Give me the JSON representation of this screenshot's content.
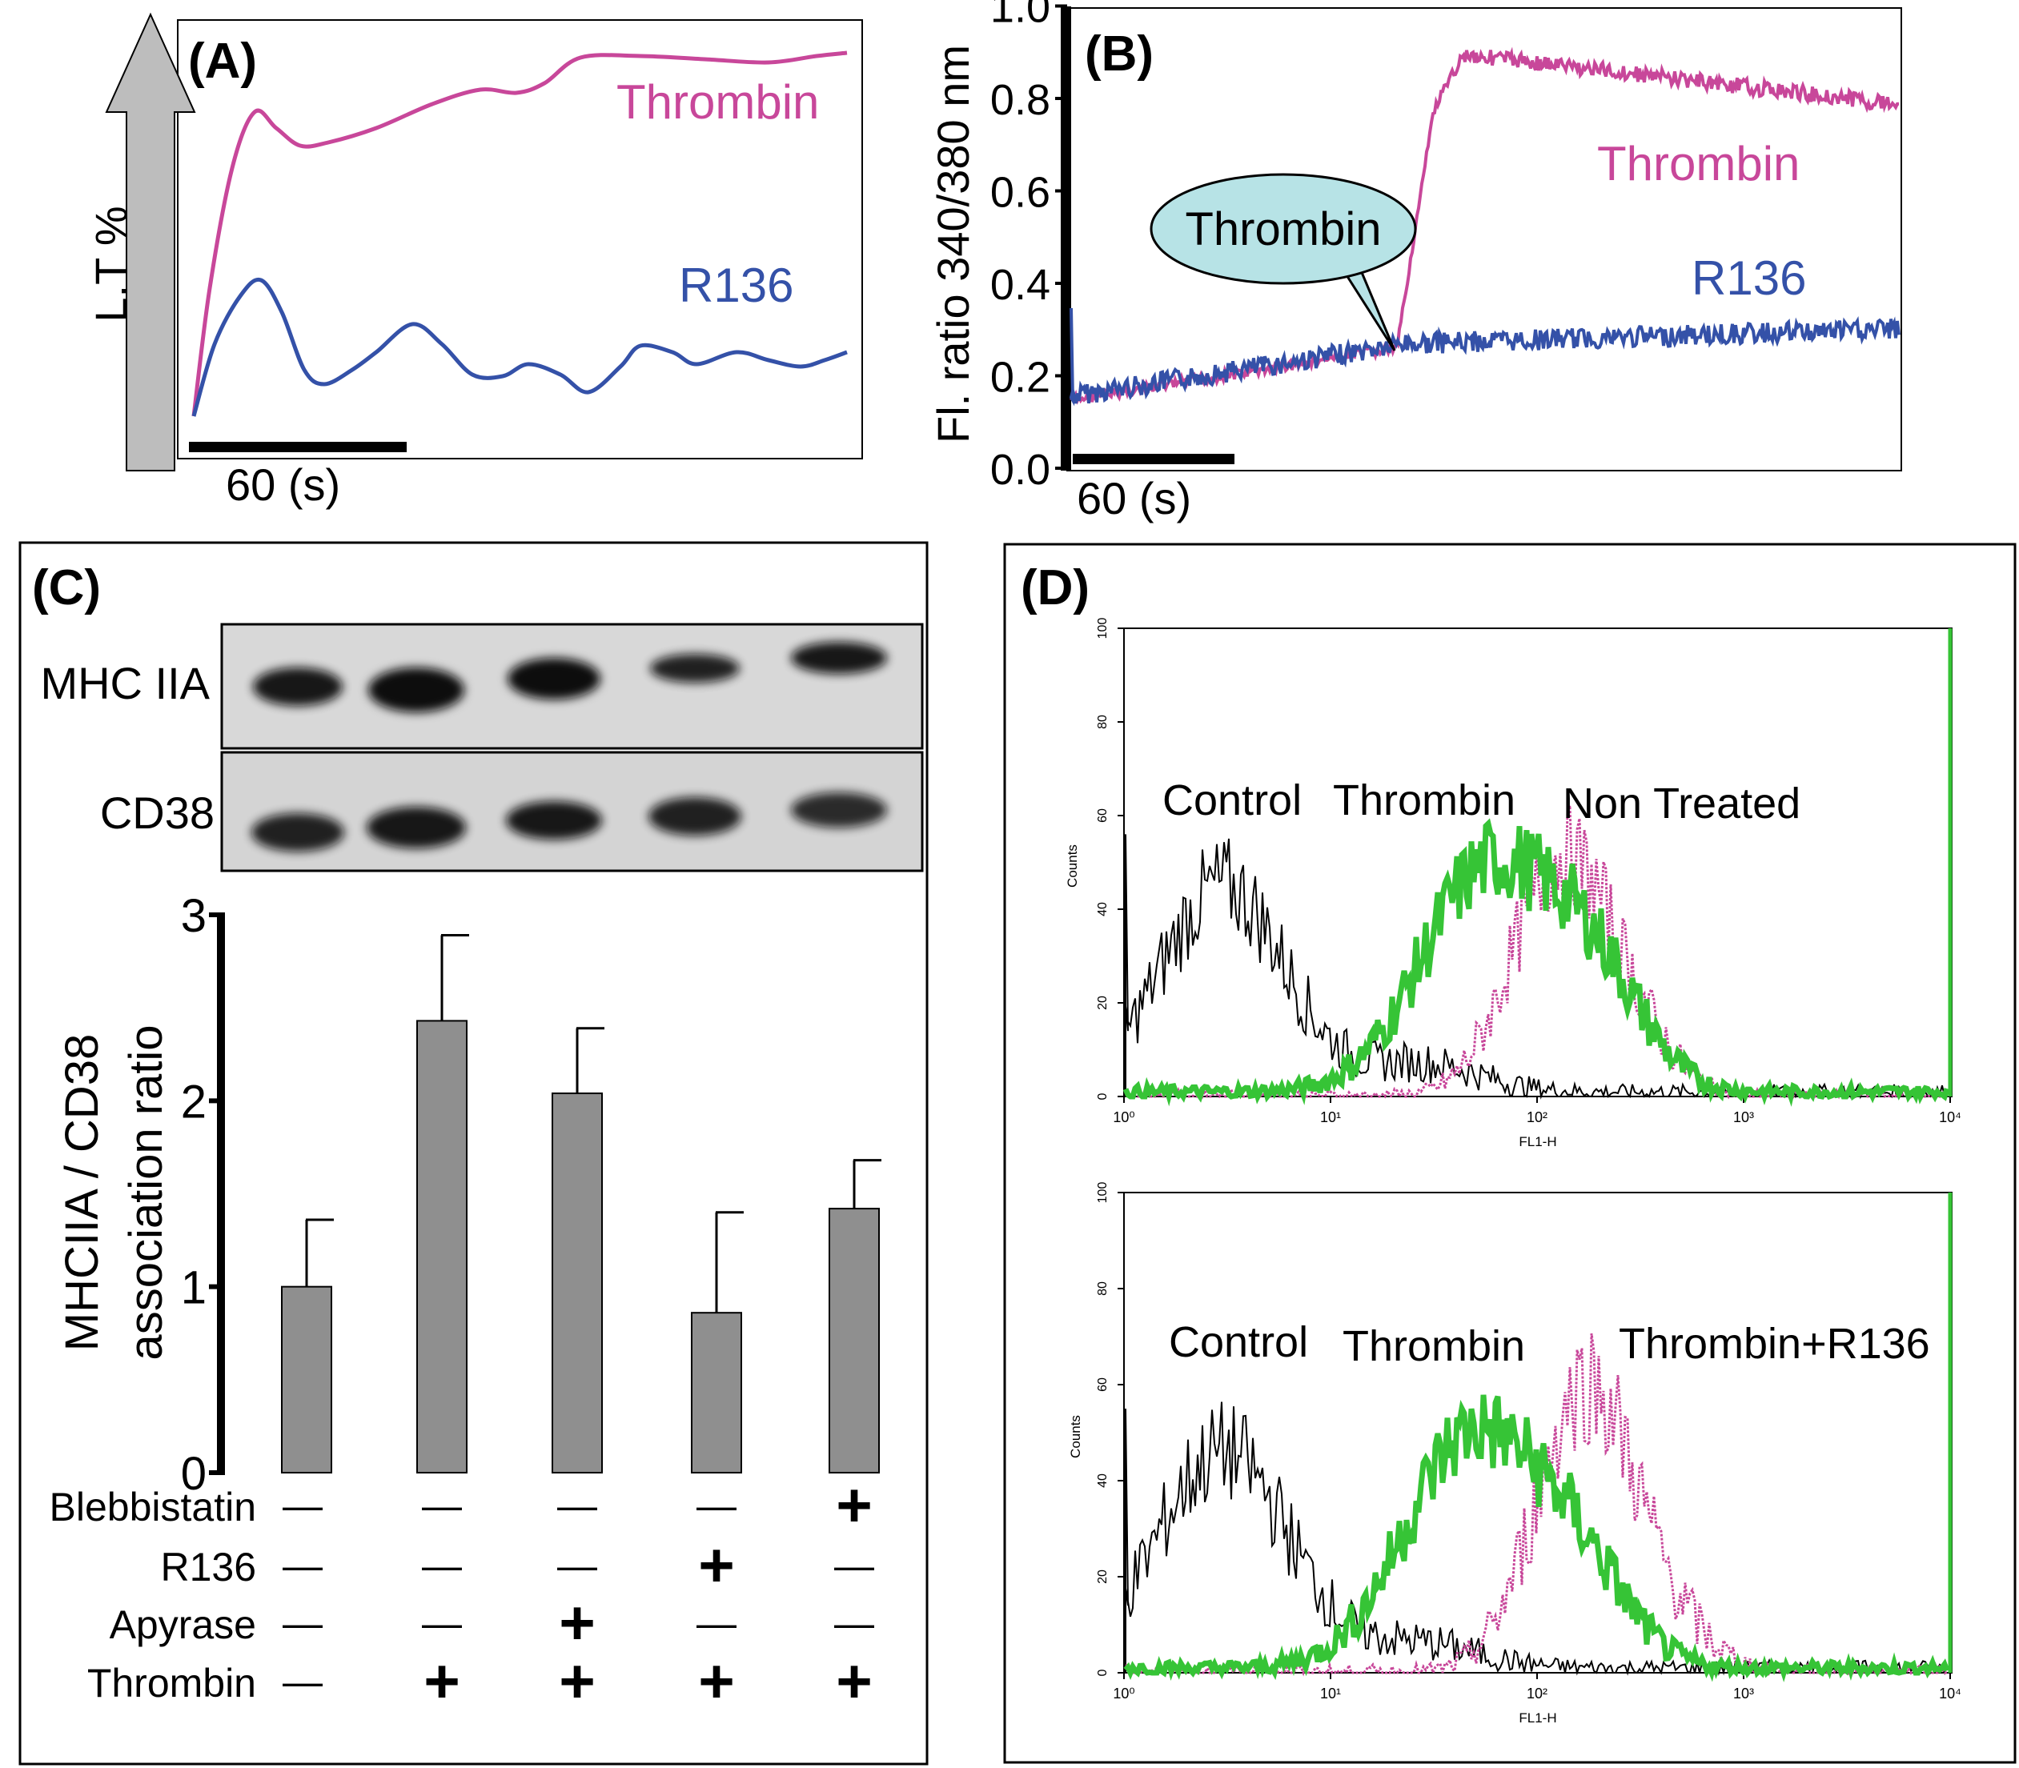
{
  "colors": {
    "thrombin": "#c8479a",
    "r136": "#3451a8",
    "green": "#36c436",
    "bar": "#8f8f8f",
    "callout": "#b7e3e6"
  },
  "panelA": {
    "label": "(A)",
    "ylabel": "L.T %",
    "scale_label": "60 (s)",
    "series": [
      {
        "name": "Thrombin"
      },
      {
        "name": "R136"
      }
    ]
  },
  "panelB": {
    "label": "(B)",
    "ylabel": "Fl. ratio 340/380 nm",
    "yticks": [
      "0.0",
      "0.2",
      "0.4",
      "0.6",
      "0.8",
      "1.0"
    ],
    "scale_label": "60 (s)",
    "callout": "Thrombin",
    "series": [
      {
        "name": "Thrombin"
      },
      {
        "name": "R136"
      }
    ]
  },
  "panelC": {
    "label": "(C)",
    "blot_labels": [
      "MHC IIA",
      "CD38"
    ],
    "chart_data": {
      "type": "bar",
      "ylabel_line1": "MHCIIA / CD38",
      "ylabel_line2": "association ratio",
      "ylim": [
        0,
        3
      ],
      "yticks": [
        "0",
        "1",
        "2",
        "3"
      ],
      "values": [
        1.0,
        2.43,
        2.04,
        0.86,
        1.42
      ],
      "errors": [
        0.36,
        0.46,
        0.35,
        0.54,
        0.26
      ],
      "conditions": [
        {
          "name": "Blebbistatin",
          "marks": [
            "—",
            "—",
            "—",
            "—",
            "+"
          ]
        },
        {
          "name": "R136",
          "marks": [
            "—",
            "—",
            "—",
            "+",
            "—"
          ]
        },
        {
          "name": "Apyrase",
          "marks": [
            "—",
            "—",
            "+",
            "—",
            "—"
          ]
        },
        {
          "name": "Thrombin",
          "marks": [
            "—",
            "+",
            "+",
            "+",
            "+"
          ]
        }
      ]
    }
  },
  "panelD": {
    "label": "(D)",
    "xlabel": "FL1-H",
    "ylabel": "Counts",
    "yticks": [
      "0",
      "20",
      "40",
      "60",
      "80",
      "100"
    ],
    "xticks": [
      "10⁰",
      "10¹",
      "10²",
      "10³",
      "10⁴"
    ],
    "top": {
      "legend": [
        "Control",
        "Thrombin",
        "Non Treated"
      ]
    },
    "bottom": {
      "legend": [
        "Control",
        "Thrombin",
        "Thrombin+R136"
      ]
    }
  }
}
